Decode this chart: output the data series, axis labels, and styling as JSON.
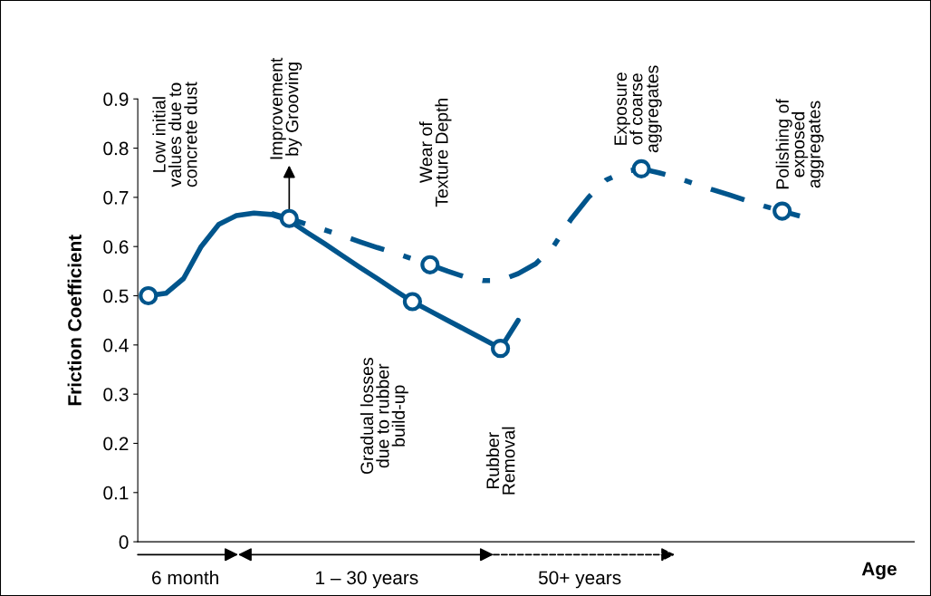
{
  "chart_data": {
    "type": "line",
    "ylabel": "Friction Coefficient",
    "xlabel": "Age",
    "categories": [
      null,
      null,
      null,
      null,
      null,
      null,
      null,
      null,
      null,
      null,
      null,
      null,
      null,
      null,
      null,
      null,
      null,
      null,
      null,
      null,
      null,
      null,
      null,
      null,
      null,
      null,
      null,
      null,
      null,
      null,
      null,
      null,
      null,
      null,
      null,
      null,
      null,
      null,
      null,
      null,
      null,
      null,
      null,
      null
    ],
    "ylim": [
      0,
      0.9
    ],
    "yticks": [
      0,
      0.1,
      0.2,
      0.3,
      0.4,
      0.5,
      0.6,
      0.7,
      0.8,
      0.9
    ],
    "grid": false,
    "legend": false,
    "series": [
      {
        "color": "#00558c",
        "line_style": "solid",
        "values": [
          0.5,
          0.505,
          0.535,
          0.6,
          0.645,
          0.663,
          0.668,
          0.665,
          0.653,
          0.629,
          0.606,
          0.582,
          0.558,
          0.535,
          0.511,
          0.488,
          0.469,
          0.45,
          0.431,
          0.412,
          0.393,
          0.45,
          null,
          null,
          null,
          null,
          null,
          null,
          null,
          null,
          null,
          null,
          null,
          null,
          null,
          null,
          null,
          null,
          null,
          null,
          null,
          null,
          null,
          null
        ]
      },
      {
        "color": "#00558c",
        "line_style": "dashed",
        "values": [
          null,
          null,
          null,
          null,
          null,
          null,
          null,
          0.667,
          0.657,
          0.645,
          0.634,
          0.622,
          0.61,
          0.598,
          0.587,
          0.575,
          0.563,
          0.55,
          0.538,
          0.531,
          0.531,
          0.545,
          0.565,
          0.6,
          0.655,
          0.7,
          0.735,
          0.752,
          0.758,
          0.75,
          0.74,
          0.728,
          0.716,
          0.705,
          0.693,
          0.682,
          0.672,
          0.662,
          null,
          null,
          null,
          null,
          null,
          null
        ]
      },
      {
        "type": "scatter",
        "color": "#00558c",
        "marker": "circle",
        "values": [
          0.5,
          null,
          null,
          null,
          null,
          null,
          null,
          null,
          0.657,
          null,
          null,
          null,
          null,
          null,
          null,
          0.488,
          0.563,
          null,
          null,
          null,
          0.393,
          null,
          null,
          null,
          null,
          null,
          null,
          null,
          0.758,
          null,
          null,
          null,
          null,
          null,
          null,
          null,
          0.672,
          null,
          null,
          null,
          null,
          null,
          null,
          null
        ]
      }
    ],
    "annotations": [
      "Low initial\nvalues due to\nconcrete dust",
      "Improvement\nby Grooving",
      "Wear of\nTexture Depth",
      "Exposure\nof coarse\naggregates",
      "Polishing of\nexposed\naggregates",
      "Gradual losses\ndue to rubber\nbuild-up",
      "Rubber\nRemoval",
      "6 month",
      "1 – 30 years",
      "50+ years"
    ]
  }
}
